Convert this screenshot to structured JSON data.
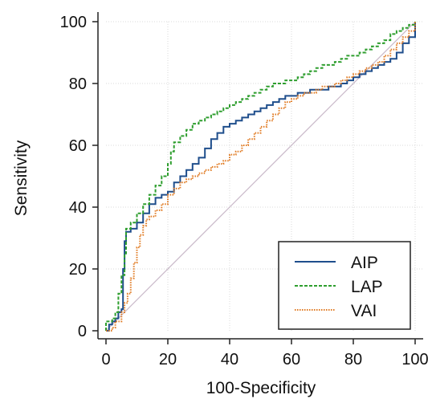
{
  "chart_data": {
    "type": "line",
    "title": "",
    "xlabel": "100-Specificity",
    "ylabel": "Sensitivity",
    "xlim": [
      0,
      100
    ],
    "ylim": [
      0,
      100
    ],
    "x_ticks": [
      "0",
      "20",
      "40",
      "60",
      "80",
      "100"
    ],
    "y_ticks": [
      "0",
      "20",
      "40",
      "60",
      "80",
      "100"
    ],
    "grid": true,
    "legend_position": "bottom-right",
    "reference_line": {
      "from": [
        0,
        0
      ],
      "to": [
        100,
        100
      ],
      "color": "#c9b9c9"
    },
    "series": [
      {
        "name": "AIP",
        "color": "#1f4e8c",
        "dash": "solid",
        "points": [
          [
            0,
            0
          ],
          [
            1,
            2
          ],
          [
            2,
            3
          ],
          [
            3,
            4
          ],
          [
            4,
            6
          ],
          [
            5,
            7
          ],
          [
            5.5,
            20
          ],
          [
            6,
            29
          ],
          [
            6.5,
            32
          ],
          [
            8,
            33
          ],
          [
            10,
            35
          ],
          [
            12,
            38
          ],
          [
            14,
            41
          ],
          [
            16,
            43
          ],
          [
            18,
            44
          ],
          [
            20,
            45
          ],
          [
            22,
            48
          ],
          [
            24,
            50
          ],
          [
            26,
            52
          ],
          [
            28,
            54
          ],
          [
            30,
            56
          ],
          [
            32,
            59
          ],
          [
            34,
            62
          ],
          [
            36,
            64
          ],
          [
            38,
            66
          ],
          [
            40,
            67
          ],
          [
            42,
            68
          ],
          [
            44,
            69
          ],
          [
            46,
            70
          ],
          [
            48,
            71
          ],
          [
            50,
            72
          ],
          [
            52,
            73
          ],
          [
            54,
            74
          ],
          [
            56,
            75
          ],
          [
            58,
            76
          ],
          [
            60,
            76
          ],
          [
            62,
            77
          ],
          [
            64,
            77
          ],
          [
            66,
            78
          ],
          [
            70,
            78
          ],
          [
            72,
            79
          ],
          [
            74,
            79
          ],
          [
            76,
            80
          ],
          [
            78,
            81
          ],
          [
            80,
            82
          ],
          [
            82,
            83
          ],
          [
            84,
            84
          ],
          [
            86,
            85
          ],
          [
            88,
            86
          ],
          [
            90,
            87
          ],
          [
            92,
            88
          ],
          [
            94,
            90
          ],
          [
            96,
            93
          ],
          [
            98,
            95
          ],
          [
            100,
            100
          ]
        ]
      },
      {
        "name": "LAP",
        "color": "#2e9e2e",
        "dash": "dashed",
        "points": [
          [
            0,
            0
          ],
          [
            0,
            3
          ],
          [
            2,
            4
          ],
          [
            3,
            6
          ],
          [
            4,
            12
          ],
          [
            5,
            18
          ],
          [
            6,
            25
          ],
          [
            6.5,
            33
          ],
          [
            8,
            35
          ],
          [
            10,
            38
          ],
          [
            12,
            41
          ],
          [
            14,
            44
          ],
          [
            16,
            47
          ],
          [
            18,
            50
          ],
          [
            20,
            54
          ],
          [
            21,
            58
          ],
          [
            22,
            61
          ],
          [
            24,
            63
          ],
          [
            26,
            65
          ],
          [
            28,
            67
          ],
          [
            30,
            68
          ],
          [
            32,
            69
          ],
          [
            34,
            70
          ],
          [
            36,
            71
          ],
          [
            38,
            72
          ],
          [
            40,
            73
          ],
          [
            42,
            74
          ],
          [
            44,
            75
          ],
          [
            46,
            76
          ],
          [
            48,
            77
          ],
          [
            50,
            78
          ],
          [
            52,
            79
          ],
          [
            54,
            80
          ],
          [
            56,
            80
          ],
          [
            58,
            81
          ],
          [
            60,
            81
          ],
          [
            62,
            82
          ],
          [
            64,
            83
          ],
          [
            66,
            84
          ],
          [
            68,
            85
          ],
          [
            70,
            86
          ],
          [
            72,
            86
          ],
          [
            74,
            87
          ],
          [
            76,
            88
          ],
          [
            78,
            89
          ],
          [
            80,
            89
          ],
          [
            82,
            90
          ],
          [
            84,
            91
          ],
          [
            86,
            92
          ],
          [
            88,
            93
          ],
          [
            90,
            94
          ],
          [
            92,
            96
          ],
          [
            94,
            97
          ],
          [
            96,
            98
          ],
          [
            98,
            99
          ],
          [
            100,
            100
          ]
        ]
      },
      {
        "name": "VAI",
        "color": "#e07a22",
        "dash": "dotted",
        "points": [
          [
            0,
            0
          ],
          [
            2,
            1
          ],
          [
            3,
            3
          ],
          [
            5,
            6
          ],
          [
            6,
            9
          ],
          [
            7,
            12
          ],
          [
            8,
            17
          ],
          [
            9,
            22
          ],
          [
            10,
            27
          ],
          [
            11,
            31
          ],
          [
            12,
            34
          ],
          [
            13,
            36
          ],
          [
            14,
            37
          ],
          [
            16,
            39
          ],
          [
            18,
            41
          ],
          [
            20,
            44
          ],
          [
            22,
            46
          ],
          [
            24,
            48
          ],
          [
            26,
            49
          ],
          [
            28,
            50
          ],
          [
            30,
            51
          ],
          [
            32,
            52
          ],
          [
            34,
            53
          ],
          [
            36,
            54
          ],
          [
            38,
            55
          ],
          [
            40,
            57
          ],
          [
            42,
            58
          ],
          [
            44,
            60
          ],
          [
            46,
            62
          ],
          [
            48,
            64
          ],
          [
            50,
            66
          ],
          [
            52,
            68
          ],
          [
            54,
            70
          ],
          [
            56,
            72
          ],
          [
            58,
            74
          ],
          [
            60,
            75
          ],
          [
            62,
            76
          ],
          [
            64,
            77
          ],
          [
            66,
            77
          ],
          [
            68,
            78
          ],
          [
            70,
            79
          ],
          [
            72,
            79
          ],
          [
            74,
            80
          ],
          [
            76,
            81
          ],
          [
            78,
            82
          ],
          [
            80,
            83
          ],
          [
            82,
            84
          ],
          [
            84,
            85
          ],
          [
            86,
            86
          ],
          [
            88,
            87
          ],
          [
            90,
            89
          ],
          [
            92,
            91
          ],
          [
            94,
            93
          ],
          [
            96,
            95
          ],
          [
            98,
            97
          ],
          [
            100,
            100
          ]
        ]
      }
    ]
  }
}
